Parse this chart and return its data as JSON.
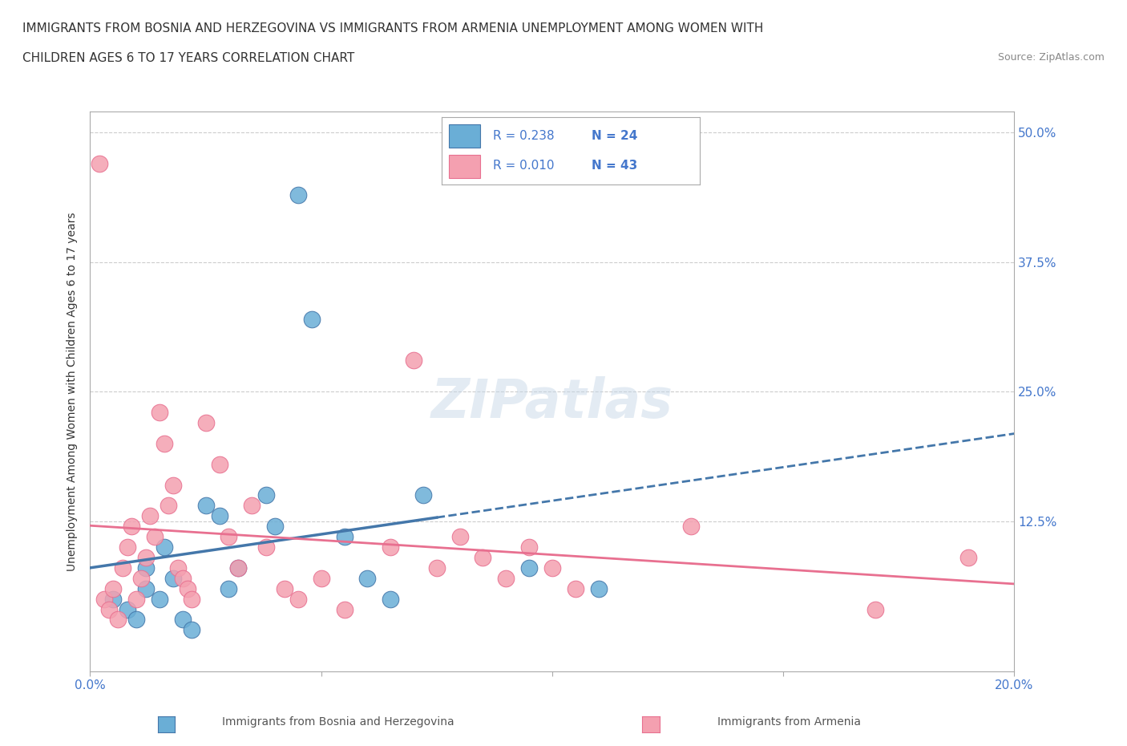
{
  "title_line1": "IMMIGRANTS FROM BOSNIA AND HERZEGOVINA VS IMMIGRANTS FROM ARMENIA UNEMPLOYMENT AMONG WOMEN WITH",
  "title_line2": "CHILDREN AGES 6 TO 17 YEARS CORRELATION CHART",
  "source_text": "Source: ZipAtlas.com",
  "xlabel": "",
  "ylabel": "Unemployment Among Women with Children Ages 6 to 17 years",
  "xlim": [
    0.0,
    0.2
  ],
  "ylim": [
    -0.02,
    0.52
  ],
  "xticks": [
    0.0,
    0.05,
    0.1,
    0.15,
    0.2
  ],
  "xticklabels": [
    "0.0%",
    "",
    "",
    "",
    "20.0%"
  ],
  "ytick_labels_right": [
    "50.0%",
    "37.5%",
    "25.0%",
    "12.5%"
  ],
  "ytick_vals_right": [
    0.5,
    0.375,
    0.25,
    0.125
  ],
  "watermark": "ZIPatlas",
  "legend_r1": "R = 0.238",
  "legend_n1": "N = 24",
  "legend_r2": "R = 0.010",
  "legend_n2": "N = 43",
  "color_blue": "#6aaed6",
  "color_pink": "#f4a0b0",
  "color_blue_dark": "#4477aa",
  "color_pink_dark": "#e87090",
  "color_blue_text": "#4477cc",
  "color_pink_text": "#dd5577",
  "bosnia_x": [
    0.005,
    0.008,
    0.01,
    0.012,
    0.012,
    0.015,
    0.016,
    0.018,
    0.02,
    0.022,
    0.025,
    0.028,
    0.03,
    0.032,
    0.038,
    0.04,
    0.045,
    0.048,
    0.055,
    0.06,
    0.065,
    0.072,
    0.095,
    0.11
  ],
  "bosnia_y": [
    0.05,
    0.04,
    0.03,
    0.08,
    0.06,
    0.05,
    0.1,
    0.07,
    0.03,
    0.02,
    0.14,
    0.13,
    0.06,
    0.08,
    0.15,
    0.12,
    0.44,
    0.32,
    0.11,
    0.07,
    0.05,
    0.15,
    0.08,
    0.06
  ],
  "armenia_x": [
    0.002,
    0.003,
    0.004,
    0.005,
    0.006,
    0.007,
    0.008,
    0.009,
    0.01,
    0.011,
    0.012,
    0.013,
    0.014,
    0.015,
    0.016,
    0.017,
    0.018,
    0.019,
    0.02,
    0.021,
    0.022,
    0.025,
    0.028,
    0.03,
    0.032,
    0.035,
    0.038,
    0.042,
    0.045,
    0.05,
    0.055,
    0.065,
    0.07,
    0.075,
    0.08,
    0.085,
    0.09,
    0.095,
    0.1,
    0.105,
    0.13,
    0.17,
    0.19
  ],
  "armenia_y": [
    0.47,
    0.05,
    0.04,
    0.06,
    0.03,
    0.08,
    0.1,
    0.12,
    0.05,
    0.07,
    0.09,
    0.13,
    0.11,
    0.23,
    0.2,
    0.14,
    0.16,
    0.08,
    0.07,
    0.06,
    0.05,
    0.22,
    0.18,
    0.11,
    0.08,
    0.14,
    0.1,
    0.06,
    0.05,
    0.07,
    0.04,
    0.1,
    0.28,
    0.08,
    0.11,
    0.09,
    0.07,
    0.1,
    0.08,
    0.06,
    0.12,
    0.04,
    0.09
  ],
  "background_color": "#ffffff",
  "grid_color": "#cccccc",
  "fig_width": 14.06,
  "fig_height": 9.3,
  "dpi": 100
}
